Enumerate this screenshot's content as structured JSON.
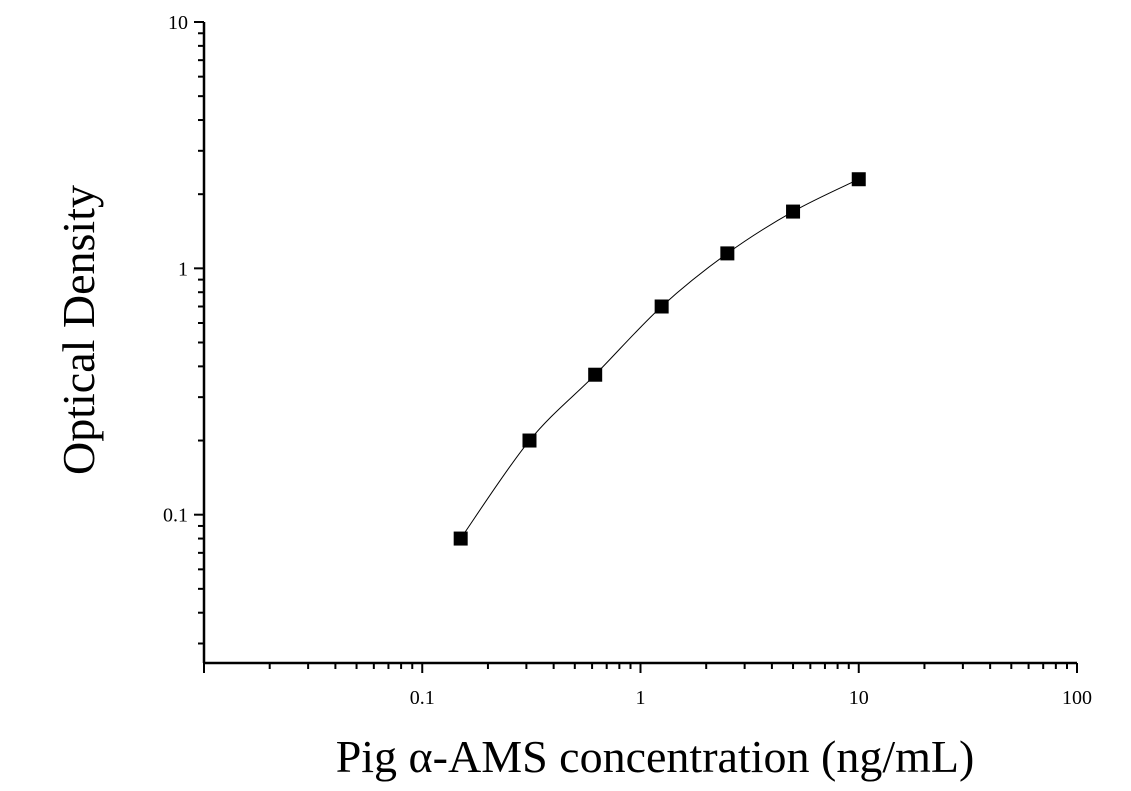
{
  "chart_data": {
    "type": "scatter",
    "x_scale": "log",
    "y_scale": "log",
    "xlim": [
      0.01,
      100
    ],
    "ylim": [
      0.025,
      10
    ],
    "x_ticks": [
      0.1,
      1,
      10,
      100
    ],
    "x_tick_labels": [
      "0.1",
      "1",
      "10",
      "100"
    ],
    "y_ticks": [
      0.1,
      1,
      10
    ],
    "y_tick_labels": [
      "0.1",
      "1",
      "10"
    ],
    "xlabel": "Pig α-AMS concentration (ng/mL)",
    "ylabel": "Optical Density",
    "grid": false,
    "legend": "none",
    "series": [
      {
        "marker": "square",
        "fit_curve": true,
        "color": "#000000",
        "x": [
          0.15,
          0.31,
          0.62,
          1.25,
          2.5,
          5,
          10
        ],
        "y": [
          0.08,
          0.2,
          0.37,
          0.7,
          1.15,
          1.7,
          2.3
        ]
      }
    ]
  }
}
